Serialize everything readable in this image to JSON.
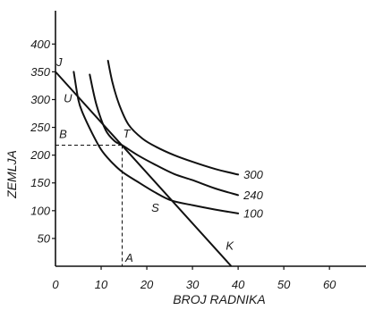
{
  "chart_data": {
    "type": "line",
    "xlabel": "BROJ RADNIKA",
    "ylabel": "ZEMLJA",
    "xlim": [
      0,
      68
    ],
    "ylim": [
      0,
      460
    ],
    "x_ticks": [
      "0",
      "10",
      "20",
      "30",
      "40",
      "50",
      "60"
    ],
    "y_ticks": [
      "50",
      "100",
      "150",
      "200",
      "250",
      "300",
      "350",
      "400"
    ],
    "series": [
      {
        "name": "100",
        "x": [
          4,
          5,
          6,
          8,
          10,
          12,
          14.6,
          18,
          22,
          25.5,
          30,
          35,
          40
        ],
        "y": [
          350,
          300,
          275,
          240,
          210,
          190,
          170,
          152,
          132,
          118,
          110,
          102,
          95
        ]
      },
      {
        "name": "240",
        "x": [
          7.5,
          9,
          11,
          13,
          14.6,
          18,
          22,
          26,
          30,
          35,
          40
        ],
        "y": [
          345,
          290,
          245,
          225,
          218,
          200,
          182,
          166,
          155,
          140,
          128
        ]
      },
      {
        "name": "300",
        "x": [
          11.5,
          12.5,
          14,
          16,
          19,
          22,
          26,
          30,
          35,
          40
        ],
        "y": [
          370,
          330,
          290,
          255,
          230,
          215,
          200,
          188,
          175,
          165
        ]
      }
    ],
    "budget_line": {
      "x": [
        0,
        38.5
      ],
      "y": [
        350,
        0
      ]
    },
    "point_labels": [
      {
        "text": "J",
        "x": 0.2,
        "y": 360
      },
      {
        "text": "U",
        "x": 1.8,
        "y": 295
      },
      {
        "text": "B",
        "x": 0.8,
        "y": 231
      },
      {
        "text": "T",
        "x": 14.8,
        "y": 232
      },
      {
        "text": "S",
        "x": 21,
        "y": 98
      },
      {
        "text": "K",
        "x": 37.3,
        "y": 30
      },
      {
        "text": "A",
        "x": 15.3,
        "y": 8
      }
    ],
    "guides": {
      "x": 14.6,
      "y": 218
    }
  }
}
